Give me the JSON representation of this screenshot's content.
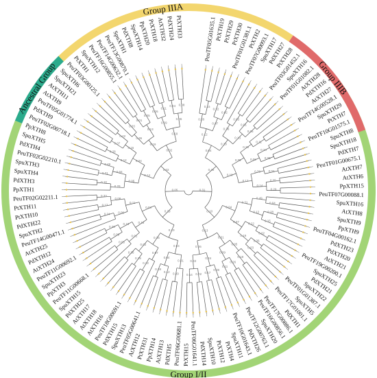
{
  "figure": {
    "colors": {
      "ancestral": "#2bab8c",
      "group_3a": "#f3d66e",
      "group_3b": "#e06a6a",
      "group_1_2": "#a2d476",
      "branch": "#555555",
      "node_marker": "#e8c24a"
    },
    "groups": [
      {
        "label": "Ancestral Group",
        "color_key": "ancestral"
      },
      {
        "label": "Group IIIA",
        "color_key": "group_3a"
      },
      {
        "label": "Group IIIB",
        "color_key": "group_3b"
      },
      {
        "label": "Group I/II",
        "color_key": "group_1_2"
      }
    ],
    "leaves": [
      "PeuTF05G01635.1",
      "PtXTH19",
      "PtXTH29",
      "PtXTH30",
      "PeuTF01G01381.1",
      "PtXTH2",
      "PeuTF07G00093.1",
      "SpuXTH17",
      "PdXTH27",
      "PtXTH28",
      "PeuTF03G01452.1",
      "SpuXTH16",
      "PeuTF01G01082.1",
      "AtXTH28",
      "PdXTH16",
      "AtXTH27",
      "PeuTF14G00528.1",
      "SpuXTH29",
      "PtXTH7",
      "PeuTF10G01575.1",
      "SpuXTH8",
      "SpuXTH18",
      "PdXTH7",
      "PeuTF01G00675.1",
      "AtXTH7",
      "AtXTH6",
      "PpXTH15",
      "PeuTF07G00088.1",
      "SpuXTH16",
      "AtXTH8",
      "SpuXTH9",
      "PpXTH9",
      "PeuTF04G00162.1",
      "PdXTH23",
      "PdXTH20",
      "AtXTH21",
      "PeuTF19G00200.1",
      "SpuXTH25",
      "PdXTH21",
      "SpuXTH22",
      "PeuTF01G01387.1",
      "SpuXTH5",
      "PeuTF17G01001.1",
      "PdXTH1",
      "PeuTF17G00886.1",
      "PeuTF16G00856.1",
      "SpuXTH20",
      "PeuTF12G00763.1",
      "PdXTH26",
      "PeuTF10G01643.1",
      "SpuXTH11",
      "PtXTH4",
      "PtXTH12",
      "SpuXTH10",
      "PdXTH14",
      "PeuTF06G01641.1",
      "PtXTH15",
      "PeuTF06G00681.1",
      "PdXTH5",
      "AtXTH13",
      "PpXTH14",
      "PtXTH31",
      "AtXTH12",
      "PeuTF05G00641.1",
      "SpuXTH13",
      "PdXTH15",
      "PeuTF18G00691.1",
      "AtXTH16",
      "AtXTH18",
      "AtXTH17",
      "PdXTH25",
      "SpuXTH15",
      "PeuTF11G00668.1",
      "PpXTH3",
      "SpuXTH23",
      "PeuTF11G00692.1",
      "AtXTH24",
      "PdXTH12",
      "AtXTH25",
      "PeuTF14G00471.1",
      "SpuXTH2",
      "PdXTH22",
      "PtXTH10",
      "PtXTH11",
      "PeuTF02G02211.1",
      "PpXTH1",
      "PdXTH3",
      "SpuXTH4",
      "SpuXTH3",
      "PeuTF02G02210.1",
      "PdXTH4",
      "SpuXTH5",
      "PpXTH8",
      "PeuTF02G00718.1",
      "PdXTH9",
      "PeuTF05G01774.1",
      "AtXTH9",
      "AtXTH11",
      "SpuXTH21",
      "SpuXTH6",
      "PeuTF03G00125.1",
      "PtXTH1",
      "SpuXTH12",
      "PeuTF16G00855.1",
      "PeuTF14G00632.1",
      "PeuTF13G00870.1",
      "SpuXTH1",
      "PdXTH8",
      "SpuXTH14",
      "PpXTH20",
      "PtXTH18",
      "AtXTH32",
      "PdXTH24",
      "PtXTH33"
    ],
    "branch_support_values": [
      "0.31",
      "0.49",
      "0.04",
      "0.12",
      "0.28",
      "0.15",
      "0.07",
      "0.22",
      "0.02",
      "0.19",
      "0.36",
      "0.03",
      "0.13",
      "0.01",
      "0.05",
      "0.18",
      "0.09",
      "0.26",
      "0.11",
      "0.06",
      "0.24",
      "0.08",
      "0.17",
      "0.33",
      "0.02",
      "0.14",
      "0.05",
      "0.29",
      "0.10",
      "0.04"
    ]
  }
}
